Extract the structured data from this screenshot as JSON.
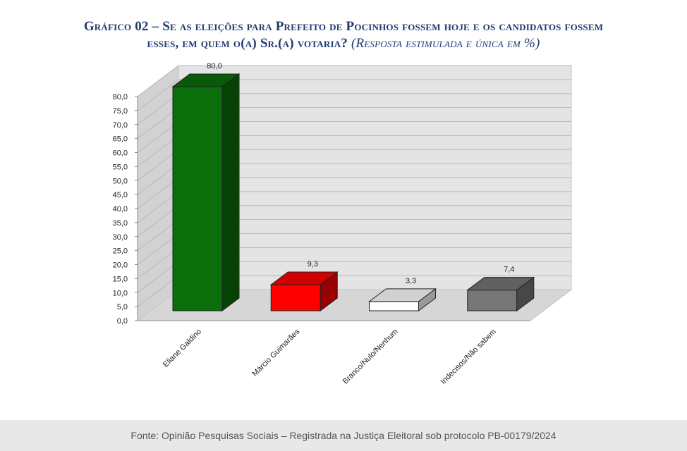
{
  "title": {
    "main": "Gráfico 02 – Se as eleições para Prefeito de Pocinhos fossem hoje e os candidatos fossem",
    "line2": "esses, em quem o(a) Sr.(a) votaria?",
    "note": "(Resposta estimulada e única em %)"
  },
  "chart_data": {
    "type": "bar",
    "categories": [
      "Eliane Galdino",
      "Márcio Guimarães",
      "Branco/Nulo/Nenhum",
      "Indecisos/Não sabem"
    ],
    "values": [
      80.0,
      9.3,
      3.3,
      7.4
    ],
    "value_labels": [
      "80,0",
      "9,3",
      "3,3",
      "7,4"
    ],
    "ylim": [
      0,
      80
    ],
    "yticks": [
      "0,0",
      "5,0",
      "10,0",
      "15,0",
      "20,0",
      "25,0",
      "30,0",
      "35,0",
      "40,0",
      "45,0",
      "50,0",
      "55,0",
      "60,0",
      "65,0",
      "70,0",
      "75,0",
      "80,0"
    ],
    "grid": true,
    "colors": [
      "#0a6e0a",
      "#ff0000",
      "#ffffff",
      "#767676"
    ]
  },
  "footer": "Fonte: Opinião Pesquisas Sociais – Registrada na Justiça Eleitoral sob protocolo PB-00179/2024"
}
